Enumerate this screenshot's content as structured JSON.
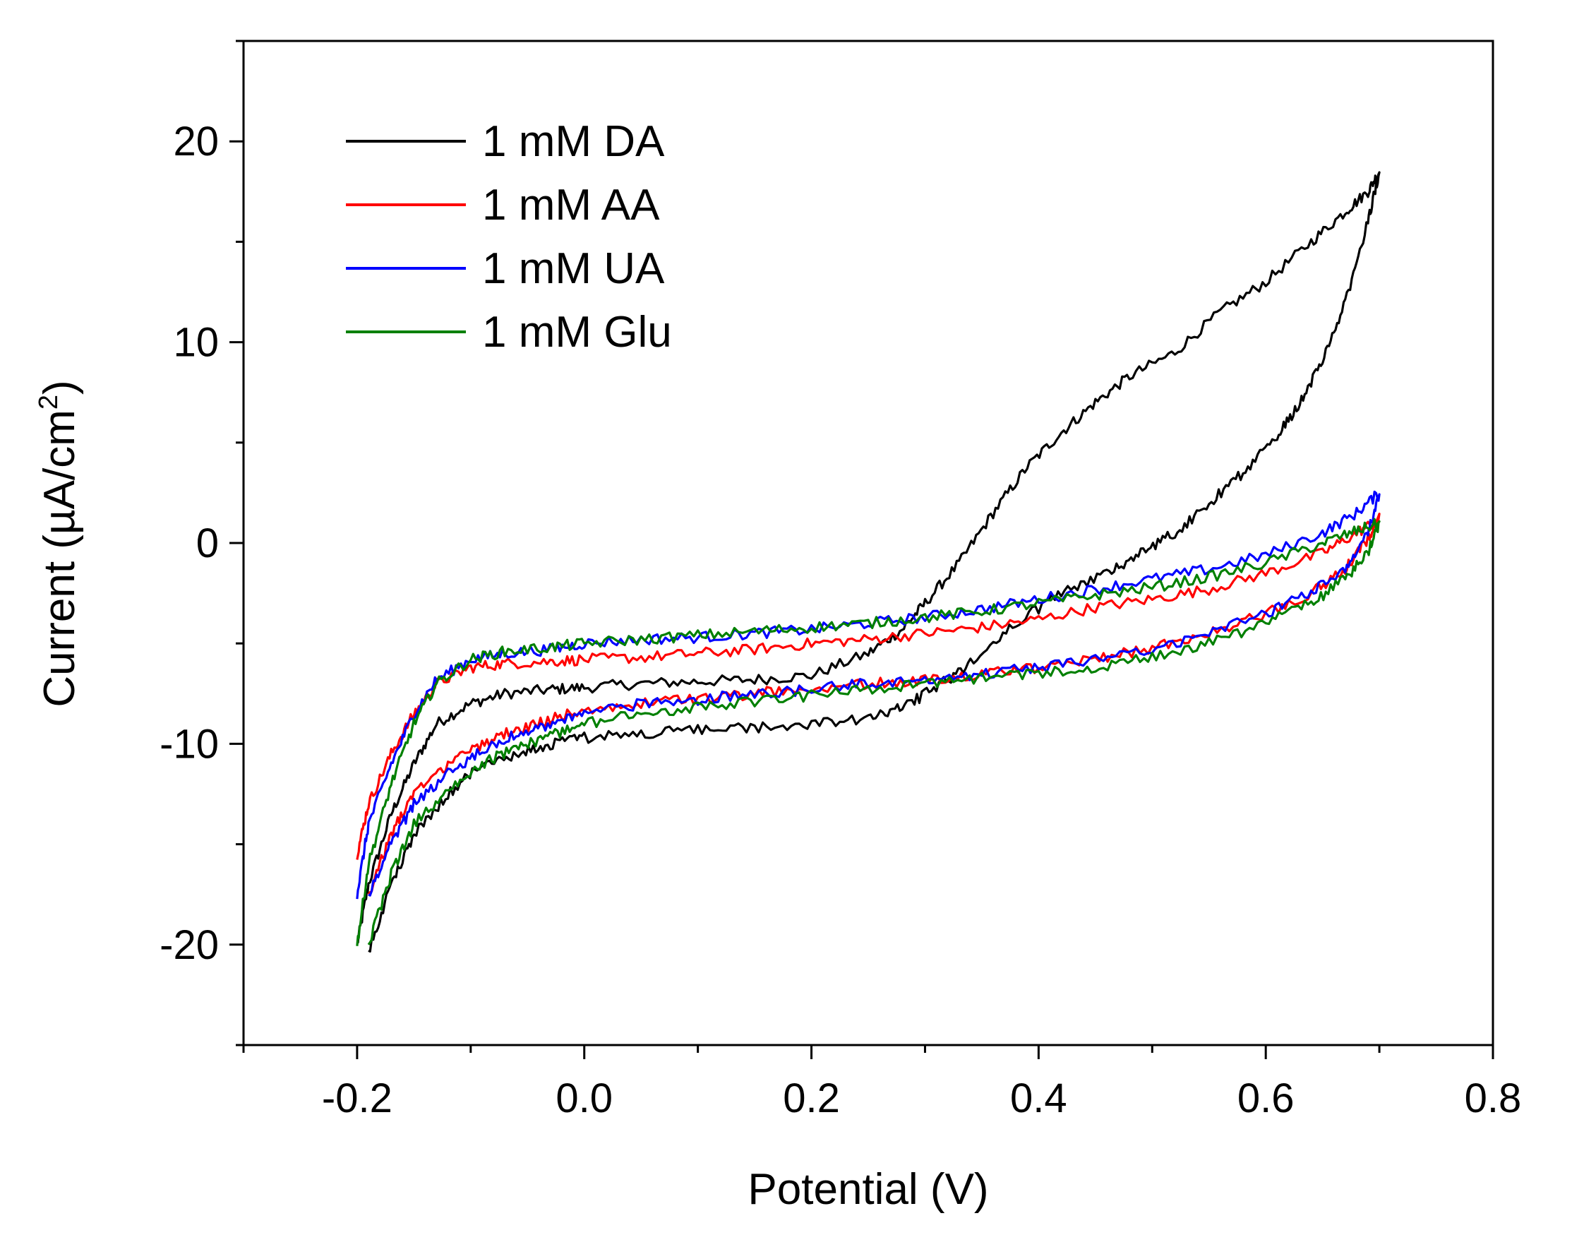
{
  "chart_data": {
    "type": "line",
    "title": "",
    "xlabel": "Potential (V)",
    "ylabel": "Current (µA/cm²)",
    "ylabel_parts": {
      "main": "Current (µA/cm",
      "sup": "2",
      "close": ")"
    },
    "xlim": [
      -0.3,
      0.8
    ],
    "ylim": [
      -25,
      25
    ],
    "xticks": [
      -0.2,
      0.0,
      0.2,
      0.4,
      0.6,
      0.8
    ],
    "xtick_labels": [
      "-0.2",
      "0.0",
      "0.2",
      "0.4",
      "0.6",
      "0.8"
    ],
    "yticks": [
      -20,
      -10,
      0,
      10,
      20
    ],
    "ytick_labels": [
      "-20",
      "-10",
      "0",
      "10",
      "20"
    ],
    "grid": false,
    "legend_position": "top-left",
    "series": [
      {
        "name": "1 mM DA",
        "color": "#000000",
        "x": [
          -0.2,
          -0.19,
          -0.17,
          -0.15,
          -0.13,
          -0.1,
          -0.07,
          -0.03,
          0.0,
          0.05,
          0.1,
          0.15,
          0.2,
          0.25,
          0.28,
          0.3,
          0.33,
          0.36,
          0.39,
          0.42,
          0.45,
          0.48,
          0.52,
          0.56,
          0.6,
          0.64,
          0.67,
          0.69,
          0.7,
          0.69,
          0.67,
          0.65,
          0.63,
          0.61,
          0.58,
          0.55,
          0.52,
          0.49,
          0.46,
          0.42,
          0.38,
          0.34,
          0.31,
          0.28,
          0.25,
          0.2,
          0.15,
          0.1,
          0.05,
          0.0,
          -0.03,
          -0.06,
          -0.09,
          -0.12,
          -0.15,
          -0.17,
          -0.19
        ],
        "y": [
          -20.0,
          -17.0,
          -13.5,
          -11.0,
          -9.0,
          -8.0,
          -7.5,
          -7.3,
          -7.2,
          -7.0,
          -6.9,
          -6.8,
          -6.6,
          -5.5,
          -4.3,
          -3.0,
          -1.0,
          1.5,
          3.8,
          5.5,
          7.0,
          8.3,
          9.5,
          11.5,
          13.0,
          15.0,
          16.5,
          17.5,
          18.5,
          16.0,
          12.0,
          9.0,
          7.0,
          5.3,
          3.5,
          2.0,
          0.5,
          -0.5,
          -1.5,
          -2.5,
          -4.0,
          -6.0,
          -7.2,
          -8.2,
          -8.8,
          -9.0,
          -9.2,
          -9.3,
          -9.5,
          -9.7,
          -10.0,
          -10.5,
          -11.0,
          -12.5,
          -14.5,
          -17.0,
          -20.3
        ]
      },
      {
        "name": "1 mM AA",
        "color": "#ff0000",
        "x": [
          -0.2,
          -0.19,
          -0.17,
          -0.15,
          -0.13,
          -0.1,
          -0.07,
          -0.03,
          0.0,
          0.05,
          0.1,
          0.15,
          0.2,
          0.25,
          0.3,
          0.35,
          0.4,
          0.45,
          0.5,
          0.55,
          0.6,
          0.65,
          0.68,
          0.7,
          0.69,
          0.67,
          0.64,
          0.6,
          0.55,
          0.5,
          0.45,
          0.4,
          0.35,
          0.3,
          0.25,
          0.2,
          0.15,
          0.1,
          0.05,
          0.0,
          -0.03,
          -0.06,
          -0.09,
          -0.12,
          -0.15,
          -0.17,
          -0.19
        ],
        "y": [
          -15.5,
          -13.0,
          -10.5,
          -8.5,
          -7.0,
          -6.2,
          -6.0,
          -5.9,
          -5.8,
          -5.7,
          -5.5,
          -5.3,
          -5.0,
          -4.8,
          -4.5,
          -4.2,
          -3.8,
          -3.2,
          -2.8,
          -2.3,
          -1.5,
          -0.5,
          0.5,
          1.2,
          0.2,
          -1.3,
          -2.5,
          -3.5,
          -4.5,
          -5.2,
          -5.8,
          -6.2,
          -6.5,
          -6.8,
          -7.0,
          -7.2,
          -7.5,
          -7.8,
          -8.0,
          -8.3,
          -8.8,
          -9.3,
          -10.0,
          -11.0,
          -12.5,
          -14.5,
          -17.5
        ]
      },
      {
        "name": "1 mM UA",
        "color": "#0000ff",
        "x": [
          -0.2,
          -0.19,
          -0.17,
          -0.15,
          -0.13,
          -0.1,
          -0.07,
          -0.03,
          0.0,
          0.05,
          0.1,
          0.15,
          0.2,
          0.25,
          0.3,
          0.35,
          0.4,
          0.45,
          0.5,
          0.55,
          0.6,
          0.65,
          0.68,
          0.7,
          0.69,
          0.67,
          0.64,
          0.6,
          0.55,
          0.5,
          0.45,
          0.4,
          0.35,
          0.3,
          0.25,
          0.2,
          0.15,
          0.1,
          0.05,
          0.0,
          -0.03,
          -0.06,
          -0.09,
          -0.12,
          -0.15,
          -0.17,
          -0.19
        ],
        "y": [
          -17.5,
          -14.0,
          -11.0,
          -8.5,
          -6.8,
          -5.8,
          -5.5,
          -5.3,
          -5.0,
          -4.8,
          -4.7,
          -4.5,
          -4.3,
          -4.0,
          -3.7,
          -3.3,
          -2.8,
          -2.3,
          -1.8,
          -1.3,
          -0.6,
          0.5,
          1.5,
          2.5,
          0.5,
          -1.2,
          -2.5,
          -3.5,
          -4.5,
          -5.3,
          -5.8,
          -6.2,
          -6.5,
          -6.8,
          -7.0,
          -7.3,
          -7.5,
          -7.8,
          -8.0,
          -8.5,
          -9.0,
          -9.5,
          -10.3,
          -11.5,
          -13.0,
          -15.0,
          -17.5
        ]
      },
      {
        "name": "1 mM Glu",
        "color": "#008000",
        "x": [
          -0.2,
          -0.19,
          -0.17,
          -0.15,
          -0.13,
          -0.1,
          -0.07,
          -0.03,
          0.0,
          0.05,
          0.1,
          0.15,
          0.2,
          0.25,
          0.3,
          0.35,
          0.4,
          0.45,
          0.5,
          0.55,
          0.6,
          0.65,
          0.68,
          0.7,
          0.69,
          0.67,
          0.64,
          0.6,
          0.55,
          0.5,
          0.45,
          0.4,
          0.35,
          0.3,
          0.25,
          0.2,
          0.15,
          0.1,
          0.05,
          0.0,
          -0.03,
          -0.06,
          -0.09,
          -0.12,
          -0.15,
          -0.17,
          -0.19
        ],
        "y": [
          -20.0,
          -16.0,
          -12.0,
          -9.0,
          -7.0,
          -5.8,
          -5.4,
          -5.2,
          -5.0,
          -4.8,
          -4.6,
          -4.4,
          -4.2,
          -4.0,
          -3.7,
          -3.4,
          -3.0,
          -2.6,
          -2.2,
          -1.7,
          -1.0,
          0.0,
          0.6,
          1.0,
          -0.5,
          -1.8,
          -3.0,
          -4.0,
          -5.0,
          -5.7,
          -6.2,
          -6.5,
          -6.7,
          -7.0,
          -7.3,
          -7.6,
          -7.9,
          -8.2,
          -8.5,
          -9.0,
          -9.6,
          -10.2,
          -11.0,
          -12.3,
          -14.0,
          -16.5,
          -20.0
        ]
      }
    ]
  }
}
